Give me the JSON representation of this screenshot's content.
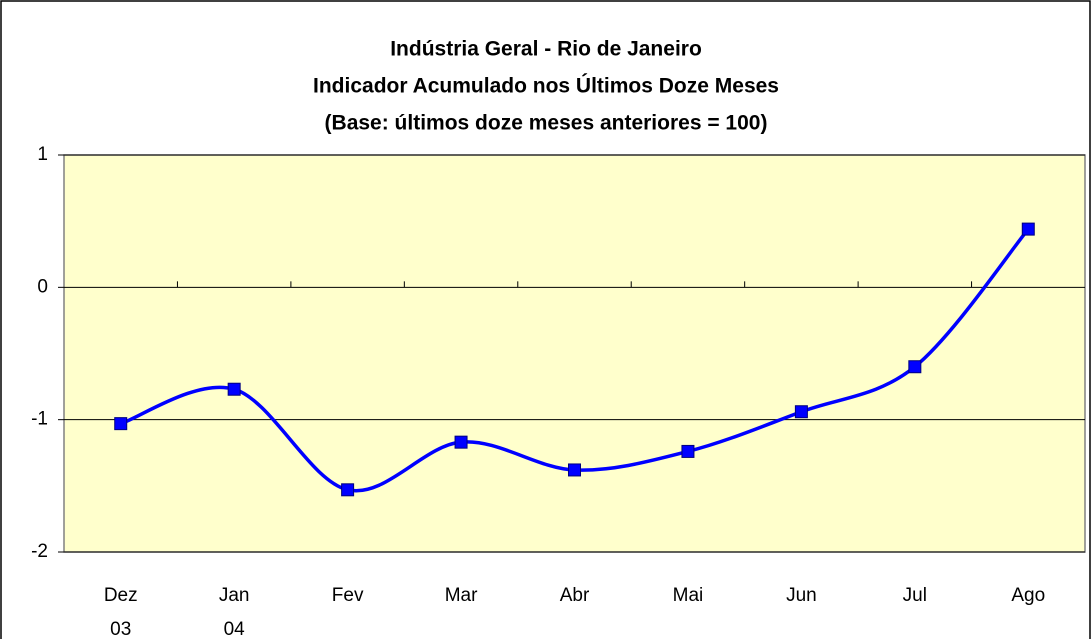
{
  "chart_data": {
    "type": "line",
    "title": [
      "Indústria Geral - Rio de Janeiro",
      "Indicador Acumulado nos Últimos Doze Meses",
      "(Base: últimos doze meses anteriores = 100)"
    ],
    "categories": [
      "Dez 03",
      "Jan 04",
      "Fev",
      "Mar",
      "Abr",
      "Mai",
      "Jun",
      "Jul",
      "Ago"
    ],
    "series": [
      {
        "name": "Indústria Geral",
        "color": "#0000ff",
        "values": [
          -1.03,
          -0.77,
          -1.53,
          -1.17,
          -1.38,
          -1.24,
          -0.94,
          -0.6,
          0.44
        ]
      }
    ],
    "ylim": [
      -2,
      1
    ],
    "yticks": [
      -2,
      -1,
      0,
      1
    ],
    "grid": true,
    "smooth": true
  }
}
